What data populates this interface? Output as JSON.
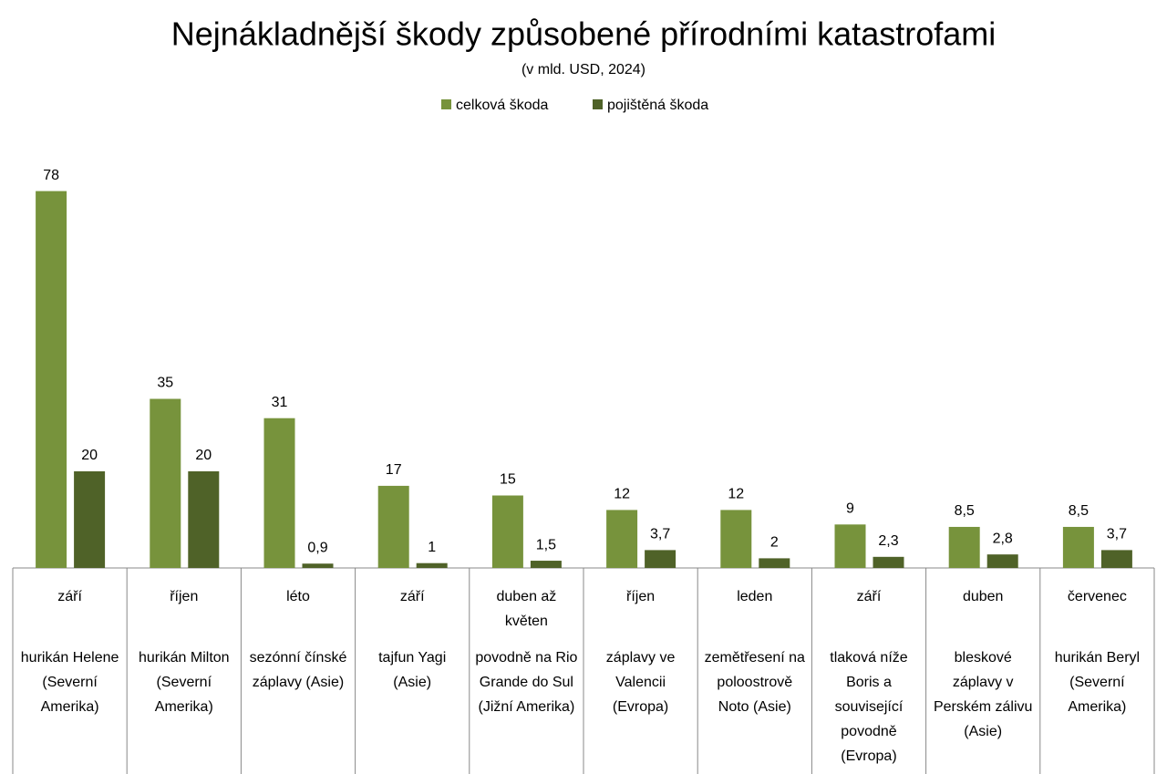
{
  "chart_data": {
    "type": "bar",
    "title": "Nejnákladnější škody způsobené přírodními katastrofami",
    "subtitle": "(v mld. USD, 2024)",
    "categories": [
      "září",
      "říjen",
      "léto",
      "září",
      "duben až květen",
      "říjen",
      "leden",
      "září",
      "duben",
      "červenec"
    ],
    "events": [
      "hurikán Helene (Severní Amerika)",
      "hurikán Milton (Severní Amerika)",
      "sezónní čínské záplavy (Asie)",
      "tajfun Yagi (Asie)",
      "povodně na Rio Grande do Sul (Jižní Amerika)",
      "záplavy ve Valencii (Evropa)",
      "zemětřesení na poloostrově Noto (Asie)",
      "tlaková níže Boris a související povodně (Evropa)",
      "bleskové záplavy v Perském zálivu (Asie)",
      "hurikán Beryl (Severní Amerika)"
    ],
    "series": [
      {
        "name": "celková škoda",
        "color": "#77933c",
        "values": [
          78,
          35,
          31,
          17,
          15,
          12,
          12,
          9,
          8.5,
          8.5
        ],
        "value_labels": [
          "78",
          "35",
          "31",
          "17",
          "15",
          "12",
          "12",
          "9",
          "8,5",
          "8,5"
        ]
      },
      {
        "name": "pojištěná škoda",
        "color": "#4f6228",
        "values": [
          20,
          20,
          0.9,
          1,
          1.5,
          3.7,
          2,
          2.3,
          2.8,
          3.7
        ],
        "value_labels": [
          "20",
          "20",
          "0,9",
          "1",
          "1,5",
          "3,7",
          "2",
          "2,3",
          "2,8",
          "3,7"
        ]
      }
    ],
    "ylim": [
      0,
      90
    ],
    "legend": "top"
  }
}
